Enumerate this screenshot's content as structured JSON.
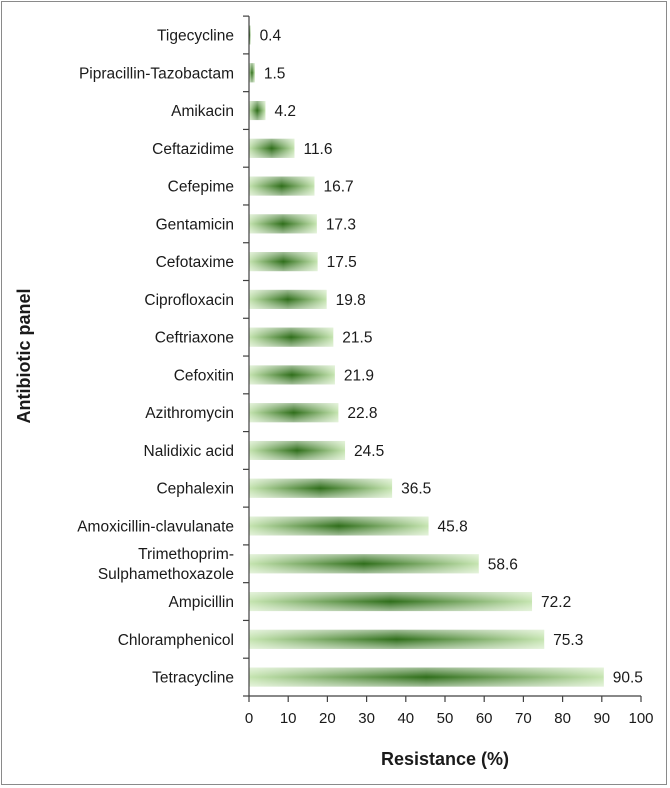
{
  "chart_data": {
    "type": "bar",
    "orientation": "horizontal",
    "categories": [
      "Tigecycline",
      "Pipracillin-Tazobactam",
      "Amikacin",
      "Ceftazidime",
      "Cefepime",
      "Gentamicin",
      "Cefotaxime",
      "Ciprofloxacin",
      "Ceftriaxone",
      "Cefoxitin",
      "Azithromycin",
      "Nalidixic acid",
      "Cephalexin",
      "Amoxicillin-clavulanate",
      "Trimethoprim-Sulphamethoxazole",
      "Ampicillin",
      "Chloramphenicol",
      "Tetracycline"
    ],
    "values": [
      0.4,
      1.5,
      4.2,
      11.6,
      16.7,
      17.3,
      17.5,
      19.8,
      21.5,
      21.9,
      22.8,
      24.5,
      36.5,
      45.8,
      58.6,
      72.2,
      75.3,
      90.5
    ],
    "value_labels": [
      "0.4",
      "1.5",
      "4.2",
      "11.6",
      "16.7",
      "17.3",
      "17.5",
      "19.8",
      "21.5",
      "21.9",
      "22.8",
      "24.5",
      "36.5",
      "45.8",
      "58.6",
      "72.2",
      "75.3",
      "90.5"
    ],
    "title": "",
    "xlabel": "Resistance (%)",
    "ylabel": "Antibiotic panel",
    "xlim": [
      0,
      100
    ],
    "xticks": [
      0,
      10,
      20,
      30,
      40,
      50,
      60,
      70,
      80,
      90,
      100
    ],
    "grid": false,
    "legend": "none",
    "bar_color": "#7cc25a",
    "bar_dark_color": "#2f6e1a",
    "bar_light_color": "#c6e5b1"
  }
}
